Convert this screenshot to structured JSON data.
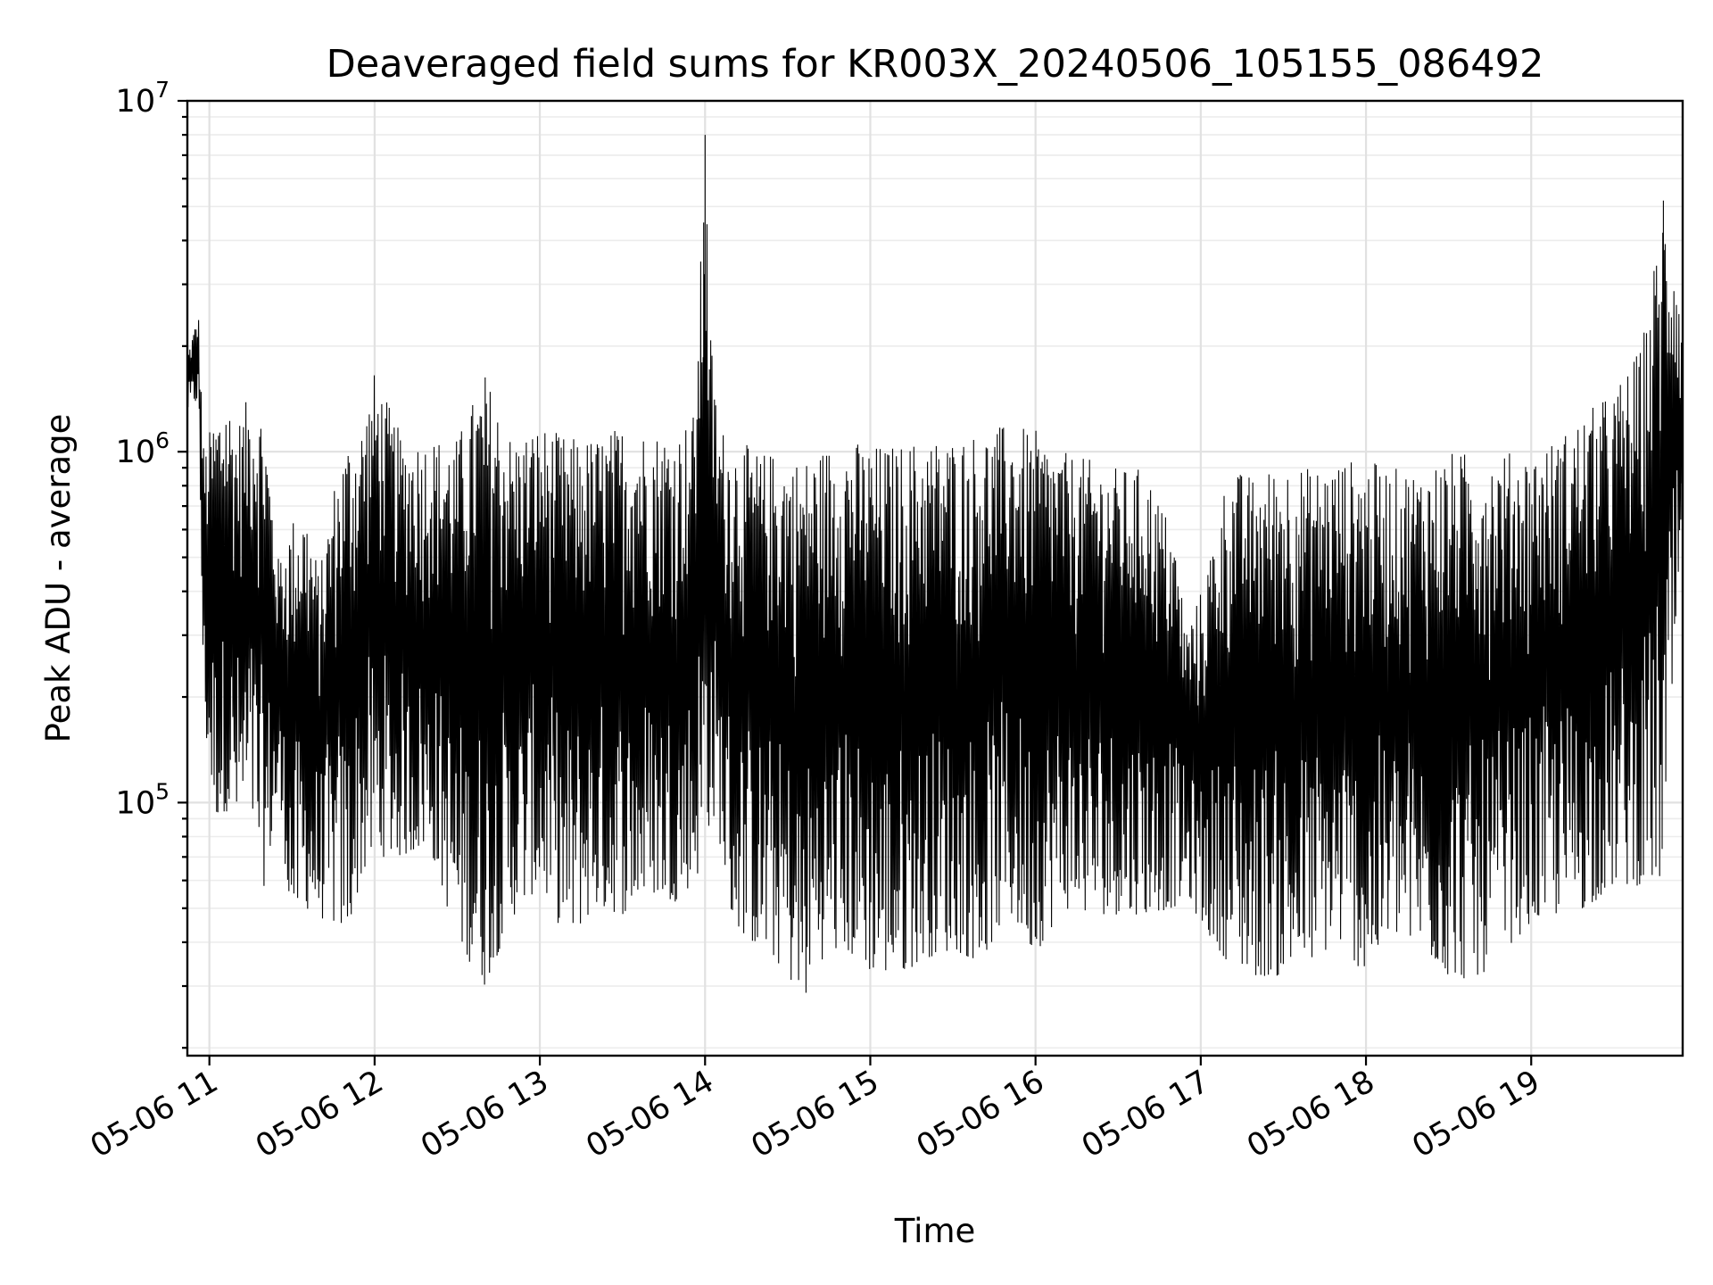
{
  "chart_data": {
    "type": "line",
    "title": "Deaveraged field sums for KR003X_20240506_105155_086492",
    "xlabel": "Time",
    "ylabel": "Peak ADU - average",
    "y_scale": "log",
    "ylim": [
      19000,
      10000000
    ],
    "xlim": [
      "2024-05-06T10:52:00",
      "2024-05-06T19:55:00"
    ],
    "grid": true,
    "line_color": "#000000",
    "x_ticks": [
      {
        "t": "2024-05-06T11:00:00",
        "label": "05-06 11"
      },
      {
        "t": "2024-05-06T12:00:00",
        "label": "05-06 12"
      },
      {
        "t": "2024-05-06T13:00:00",
        "label": "05-06 13"
      },
      {
        "t": "2024-05-06T14:00:00",
        "label": "05-06 14"
      },
      {
        "t": "2024-05-06T15:00:00",
        "label": "05-06 15"
      },
      {
        "t": "2024-05-06T16:00:00",
        "label": "05-06 16"
      },
      {
        "t": "2024-05-06T17:00:00",
        "label": "05-06 17"
      },
      {
        "t": "2024-05-06T18:00:00",
        "label": "05-06 18"
      },
      {
        "t": "2024-05-06T19:00:00",
        "label": "05-06 19"
      }
    ],
    "y_ticks": [
      {
        "value": 100000,
        "base": "10",
        "exp": "5"
      },
      {
        "value": 1000000,
        "base": "10",
        "exp": "6"
      },
      {
        "value": 10000000,
        "base": "10",
        "exp": "7"
      }
    ],
    "series": [
      {
        "x": [
          "2024-05-06T10:52:00",
          "2024-05-06T10:56:00",
          "2024-05-06T10:58:00",
          "2024-05-06T11:02:00",
          "2024-05-06T11:06:00",
          "2024-05-06T11:10:00",
          "2024-05-06T11:15:00",
          "2024-05-06T11:20:00",
          "2024-05-06T11:25:00",
          "2024-05-06T11:30:00",
          "2024-05-06T11:35:00",
          "2024-05-06T11:40:00",
          "2024-05-06T11:45:00",
          "2024-05-06T11:50:00",
          "2024-05-06T11:55:00",
          "2024-05-06T12:00:00",
          "2024-05-06T12:10:00",
          "2024-05-06T12:20:00",
          "2024-05-06T12:30:00",
          "2024-05-06T12:40:00",
          "2024-05-06T12:50:00",
          "2024-05-06T13:00:00",
          "2024-05-06T13:10:00",
          "2024-05-06T13:20:00",
          "2024-05-06T13:30:00",
          "2024-05-06T13:40:00",
          "2024-05-06T13:50:00",
          "2024-05-06T13:56:00",
          "2024-05-06T13:59:00",
          "2024-05-06T14:00:00",
          "2024-05-06T14:02:00",
          "2024-05-06T14:05:00",
          "2024-05-06T14:10:00",
          "2024-05-06T14:20:00",
          "2024-05-06T14:30:00",
          "2024-05-06T14:35:00",
          "2024-05-06T14:40:00",
          "2024-05-06T14:50:00",
          "2024-05-06T15:00:00",
          "2024-05-06T15:10:00",
          "2024-05-06T15:20:00",
          "2024-05-06T15:30:00",
          "2024-05-06T15:40:00",
          "2024-05-06T15:50:00",
          "2024-05-06T16:00:00",
          "2024-05-06T16:10:00",
          "2024-05-06T16:20:00",
          "2024-05-06T16:30:00",
          "2024-05-06T16:40:00",
          "2024-05-06T16:50:00",
          "2024-05-06T16:55:00",
          "2024-05-06T17:00:00",
          "2024-05-06T17:10:00",
          "2024-05-06T17:20:00",
          "2024-05-06T17:30:00",
          "2024-05-06T17:40:00",
          "2024-05-06T17:50:00",
          "2024-05-06T18:00:00",
          "2024-05-06T18:10:00",
          "2024-05-06T18:20:00",
          "2024-05-06T18:30:00",
          "2024-05-06T18:40:00",
          "2024-05-06T18:50:00",
          "2024-05-06T19:00:00",
          "2024-05-06T19:10:00",
          "2024-05-06T19:20:00",
          "2024-05-06T19:30:00",
          "2024-05-06T19:40:00",
          "2024-05-06T19:48:00",
          "2024-05-06T19:52:00",
          "2024-05-06T19:55:00"
        ],
        "high": [
          1900000,
          2500000,
          1000000,
          1300000,
          1500000,
          1200000,
          1500000,
          1300000,
          500000,
          650000,
          700000,
          450000,
          800000,
          1100000,
          1200000,
          1700000,
          1100000,
          1100000,
          1100000,
          1700000,
          1100000,
          1200000,
          1100000,
          1100000,
          1200000,
          1150000,
          1150000,
          1300000,
          4500000,
          8000000,
          2200000,
          1200000,
          1100000,
          1000000,
          1000000,
          950000,
          1000000,
          1100000,
          1050000,
          1050000,
          1100000,
          1100000,
          1150000,
          1200000,
          1150000,
          1000000,
          950000,
          900000,
          900000,
          600000,
          320000,
          400000,
          900000,
          850000,
          950000,
          900000,
          950000,
          950000,
          900000,
          900000,
          1000000,
          1000000,
          1000000,
          1000000,
          1100000,
          1300000,
          1500000,
          2000000,
          5200000,
          4200000,
          2300000
        ],
        "low": [
          1300000,
          1400000,
          170000,
          90000,
          95000,
          85000,
          90000,
          57000,
          100000,
          45000,
          50000,
          47000,
          45000,
          42000,
          60000,
          70000,
          70000,
          75000,
          40000,
          30000,
          47000,
          58000,
          40000,
          50000,
          48000,
          55000,
          52000,
          60000,
          65000,
          75000,
          90000,
          80000,
          45000,
          38000,
          33000,
          25000,
          35000,
          38000,
          33000,
          32000,
          36000,
          38000,
          35000,
          48000,
          37000,
          50000,
          48000,
          48000,
          48000,
          50000,
          55000,
          45000,
          35000,
          32000,
          32000,
          35000,
          40000,
          32000,
          42000,
          38000,
          32000,
          31000,
          38000,
          45000,
          48000,
          50000,
          58000,
          58000,
          60000,
          240000,
          450000
        ]
      }
    ]
  }
}
